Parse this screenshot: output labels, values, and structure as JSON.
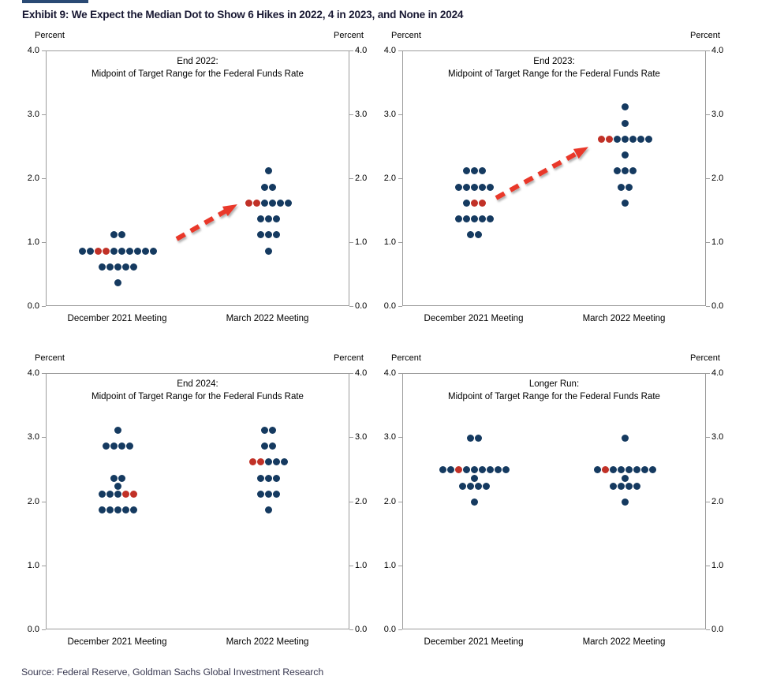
{
  "page": {
    "title": "Exhibit 9: We Expect the Median Dot to Show 6 Hikes in 2022, 4 in 2023, and None in 2024",
    "source": "Source: Federal Reserve, Goldman Sachs Global Investment Research"
  },
  "colors": {
    "dot_navy": "#153A60",
    "dot_red": "#C13127",
    "arrow_red": "#E9392B",
    "axis_gray": "#9C9C9C",
    "title_navy": "#191933",
    "source_gray": "#3A3A52",
    "accent_bar": "#2A4A74"
  },
  "chart_data": {
    "type": "scatter",
    "subtype": "fed-dot-plot",
    "description": "Four dot-plot panels of FOMC participants' federal funds rate projections; each dot is one participant, red dots mark the median dots; dashed red arrows show the expected shift from the December 2021 to the March 2022 meeting.",
    "panels": [
      {
        "id": "end-2022",
        "title_line1": "End 2022:",
        "title_line2": "Midpoint of Target Range for the Federal Funds Rate",
        "ylabel": "Percent",
        "ylim": [
          0.0,
          4.0
        ],
        "ytick_labels": [
          "4.0",
          "3.0",
          "2.0",
          "1.0",
          "0.0"
        ],
        "ytick_values": [
          4,
          3,
          2,
          1,
          0
        ],
        "categories": [
          "December 2021 Meeting",
          "March 2022 Meeting"
        ],
        "has_arrow": true,
        "series": [
          {
            "name": "December 2021 Meeting",
            "rows": [
              {
                "value": 1.125,
                "count": 2
              },
              {
                "value": 0.875,
                "count": 10,
                "red": [
                  3,
                  4
                ]
              },
              {
                "value": 0.625,
                "count": 5
              },
              {
                "value": 0.375,
                "count": 1
              }
            ]
          },
          {
            "name": "March 2022 Meeting",
            "rows": [
              {
                "value": 2.125,
                "count": 1
              },
              {
                "value": 1.875,
                "count": 2
              },
              {
                "value": 1.625,
                "count": 6,
                "red": [
                  1,
                  2
                ]
              },
              {
                "value": 1.375,
                "count": 3
              },
              {
                "value": 1.125,
                "count": 3
              },
              {
                "value": 0.875,
                "count": 1
              }
            ]
          }
        ]
      },
      {
        "id": "end-2023",
        "title_line1": "End 2023:",
        "title_line2": "Midpoint of Target Range for the Federal Funds Rate",
        "ylabel": "Percent",
        "ylim": [
          0.0,
          4.0
        ],
        "ytick_labels": [
          "4.0",
          "3.0",
          "2.0",
          "1.0",
          "0.0"
        ],
        "ytick_values": [
          4,
          3,
          2,
          1,
          0
        ],
        "categories": [
          "December 2021 Meeting",
          "March 2022 Meeting"
        ],
        "has_arrow": true,
        "series": [
          {
            "name": "December 2021 Meeting",
            "rows": [
              {
                "value": 2.125,
                "count": 3
              },
              {
                "value": 1.875,
                "count": 5
              },
              {
                "value": 1.625,
                "count": 3,
                "red": [
                  2,
                  3
                ]
              },
              {
                "value": 1.375,
                "count": 5
              },
              {
                "value": 1.125,
                "count": 2
              }
            ]
          },
          {
            "name": "March 2022 Meeting",
            "rows": [
              {
                "value": 3.125,
                "count": 1
              },
              {
                "value": 2.875,
                "count": 1
              },
              {
                "value": 2.625,
                "count": 7,
                "red": [
                  1,
                  2
                ]
              },
              {
                "value": 2.375,
                "count": 1
              },
              {
                "value": 2.125,
                "count": 3
              },
              {
                "value": 1.875,
                "count": 2
              },
              {
                "value": 1.625,
                "count": 1
              }
            ]
          }
        ]
      },
      {
        "id": "end-2024",
        "title_line1": "End 2024:",
        "title_line2": "Midpoint of Target Range for the Federal Funds Rate",
        "ylabel": "Percent",
        "ylim": [
          0.0,
          4.0
        ],
        "ytick_labels": [
          "4.0",
          "3.0",
          "2.0",
          "1.0",
          "0.0"
        ],
        "ytick_values": [
          4,
          3,
          2,
          1,
          0
        ],
        "categories": [
          "December 2021 Meeting",
          "March 2022 Meeting"
        ],
        "has_arrow": false,
        "series": [
          {
            "name": "December 2021 Meeting",
            "rows": [
              {
                "value": 3.125,
                "count": 1
              },
              {
                "value": 2.875,
                "count": 4
              },
              {
                "value": 2.375,
                "count": 2
              },
              {
                "value": 2.25,
                "count": 1
              },
              {
                "value": 2.125,
                "count": 5,
                "red": [
                  4,
                  5
                ]
              },
              {
                "value": 1.875,
                "count": 5
              }
            ]
          },
          {
            "name": "March 2022 Meeting",
            "rows": [
              {
                "value": 3.125,
                "count": 2
              },
              {
                "value": 2.875,
                "count": 2
              },
              {
                "value": 2.625,
                "count": 5,
                "red": [
                  1,
                  2
                ]
              },
              {
                "value": 2.375,
                "count": 3
              },
              {
                "value": 2.125,
                "count": 3
              },
              {
                "value": 1.875,
                "count": 1
              }
            ]
          }
        ]
      },
      {
        "id": "longer-run",
        "title_line1": "Longer Run:",
        "title_line2": "Midpoint of Target Range for the Federal Funds Rate",
        "ylabel": "Percent",
        "ylim": [
          0.0,
          4.0
        ],
        "ytick_labels": [
          "4.0",
          "3.0",
          "2.0",
          "1.0",
          "0.0"
        ],
        "ytick_values": [
          4,
          3,
          2,
          1,
          0
        ],
        "categories": [
          "December 2021 Meeting",
          "March 2022 Meeting"
        ],
        "has_arrow": false,
        "series": [
          {
            "name": "December 2021 Meeting",
            "rows": [
              {
                "value": 3.0,
                "count": 2
              },
              {
                "value": 2.5,
                "count": 9,
                "red": [
                  3
                ]
              },
              {
                "value": 2.375,
                "count": 1
              },
              {
                "value": 2.25,
                "count": 4
              },
              {
                "value": 2.0,
                "count": 1
              }
            ]
          },
          {
            "name": "March 2022 Meeting",
            "rows": [
              {
                "value": 3.0,
                "count": 1
              },
              {
                "value": 2.5,
                "count": 8,
                "red": [
                  2
                ]
              },
              {
                "value": 2.375,
                "count": 1
              },
              {
                "value": 2.25,
                "count": 4
              },
              {
                "value": 2.0,
                "count": 1
              }
            ]
          }
        ]
      }
    ]
  }
}
